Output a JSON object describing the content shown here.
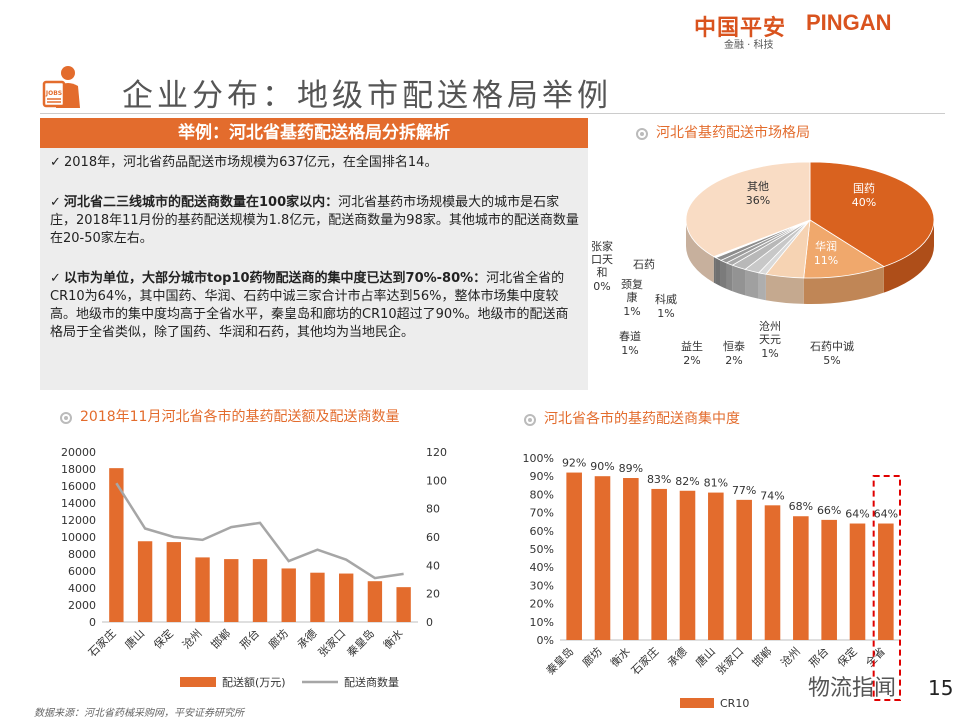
{
  "header": {
    "logo_cn": "中国平安",
    "logo_en": "PINGAN",
    "logo_sub": "金融 · 科技",
    "page_title": "企业分布：地级市配送格局举例",
    "icon_label": "JOBS"
  },
  "panel": {
    "head": "举例：河北省基药配送格局分拆解析",
    "p1": "2018年，河北省药品配送市场规模为637亿元，在全国排名14。",
    "p2_bold": "河北省二三线城市的配送商数量在100家以内：",
    "p2_rest": "河北省基药市场规模最大的城市是石家庄，2018年11月份的基药配送规模为1.8亿元，配送商数量为98家。其他城市的配送商数量在20-50家左右。",
    "p3_bold": "以市为单位，大部分城市top10药物配送商的集中度已达到70%-80%：",
    "p3_rest": "河北省全省的CR10为64%，其中国药、华润、石药中诚三家合计市占率达到56%，整体市场集中度较高。地级市的集中度均高于全省水平，秦皇岛和廊坊的CR10超过了90%。地级市的配送商格局于全省类似，除了国药、华润和石药，其他均为当地民企。",
    "check": "✓"
  },
  "pie_title": "河北省基药配送市场格局",
  "bar1_title": "2018年11月河北省各市的基药配送额及配送商数量",
  "bar2_title": "河北省各市的基药配送商集中度",
  "footer": {
    "source": "数据来源：河北省药械采购网，平安证券研究所",
    "page": "15",
    "watermark": "物流指闻"
  },
  "chart_data": [
    {
      "type": "pie",
      "title": "河北省基药配送市场格局",
      "labels": [
        "国药",
        "华润",
        "石药中诚",
        "沧州天元",
        "恒泰",
        "益生",
        "春道",
        "科威",
        "颈复康",
        "石药",
        "张家口天和",
        "其他"
      ],
      "values": [
        40,
        11,
        5,
        1,
        2,
        2,
        1,
        1,
        1,
        0,
        0,
        36
      ],
      "value_labels": [
        "40%",
        "11%",
        "5%",
        "1%",
        "2%",
        "2%",
        "1%",
        "1%",
        "1%",
        "",
        "0%",
        "36%"
      ],
      "colors": [
        "#d9621f",
        "#f0a86c",
        "#f6d3b3",
        "#d9d9d9",
        "#c8c8c8",
        "#b8b8b8",
        "#a9a9a9",
        "#9a9a9a",
        "#8c8c8c",
        "#7e7e7e",
        "#707070",
        "#f9dcc4"
      ]
    },
    {
      "type": "bar",
      "title": "2018年11月河北省各市的基药配送额及配送商数量",
      "categories": [
        "石家庄",
        "唐山",
        "保定",
        "沧州",
        "邯郸",
        "邢台",
        "廊坊",
        "承德",
        "张家口",
        "秦皇岛",
        "衡水"
      ],
      "series": [
        {
          "name": "配送额(万元)",
          "type": "bar",
          "axis": "left",
          "values": [
            18100,
            9500,
            9400,
            7600,
            7400,
            7400,
            6300,
            5800,
            5700,
            4800,
            4100
          ],
          "color": "#e36c2d"
        },
        {
          "name": "配送商数量",
          "type": "line",
          "axis": "right",
          "values": [
            98,
            66,
            60,
            58,
            67,
            70,
            43,
            51,
            44,
            31,
            34
          ],
          "color": "#a6a6a6"
        }
      ],
      "ylim_left": [
        0,
        20000
      ],
      "yticks_left": [
        "0",
        "2000",
        "4000",
        "6000",
        "8000",
        "10000",
        "12000",
        "14000",
        "16000",
        "18000",
        "20000"
      ],
      "ylim_right": [
        0,
        120
      ],
      "yticks_right": [
        "0",
        "20",
        "40",
        "60",
        "80",
        "100",
        "120"
      ],
      "legend": "bottom"
    },
    {
      "type": "bar",
      "title": "河北省各市的基药配送商集中度",
      "categories": [
        "秦皇岛",
        "廊坊",
        "衡水",
        "石家庄",
        "承德",
        "唐山",
        "张家口",
        "邯郸",
        "沧州",
        "邢台",
        "保定",
        "全省"
      ],
      "series": [
        {
          "name": "CR10",
          "values": [
            92,
            90,
            89,
            83,
            82,
            81,
            77,
            74,
            68,
            66,
            64,
            64
          ],
          "color": "#e36c2d"
        }
      ],
      "value_labels": [
        "92%",
        "90%",
        "89%",
        "83%",
        "82%",
        "81%",
        "77%",
        "74%",
        "68%",
        "66%",
        "64%",
        "64%"
      ],
      "ylim": [
        0,
        100
      ],
      "yticks": [
        "0%",
        "10%",
        "20%",
        "30%",
        "40%",
        "50%",
        "60%",
        "70%",
        "80%",
        "90%",
        "100%"
      ],
      "highlight": "全省",
      "legend": "bottom"
    }
  ]
}
